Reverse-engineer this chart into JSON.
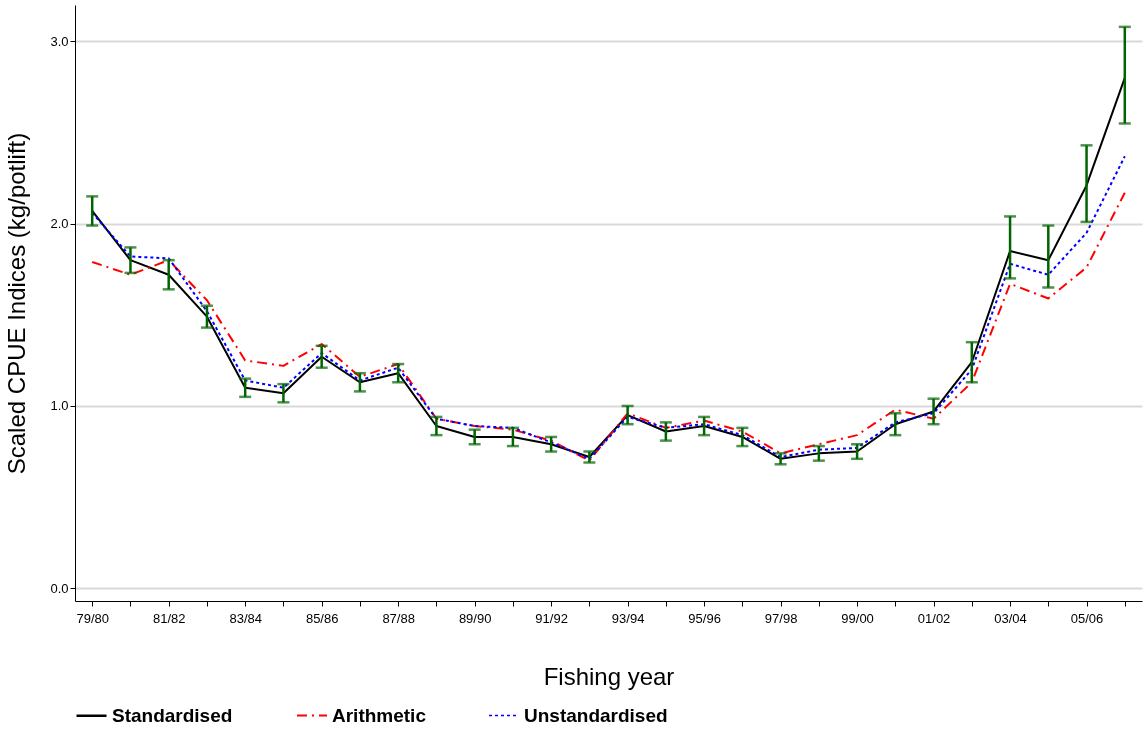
{
  "chart_data": {
    "type": "line",
    "xlabel": "Fishing year",
    "ylabel": "Scaled CPUE Indices (kg/potlift)",
    "categories": [
      "79/80",
      null,
      "81/82",
      null,
      "83/84",
      null,
      "85/86",
      null,
      "87/88",
      null,
      "89/90",
      null,
      "91/92",
      null,
      "93/94",
      null,
      "95/96",
      null,
      "97/98",
      null,
      "99/00",
      null,
      "01/02",
      null,
      "03/04",
      null,
      "05/06",
      null
    ],
    "series": [
      {
        "name": "Standardised",
        "color": "#000000",
        "line_style": "solid",
        "values": [
          2.07,
          1.8,
          1.72,
          1.49,
          1.1,
          1.07,
          1.27,
          1.13,
          1.18,
          0.89,
          0.83,
          0.83,
          0.79,
          0.72,
          0.95,
          0.86,
          0.89,
          0.83,
          0.71,
          0.74,
          0.75,
          0.9,
          0.97,
          1.24,
          1.85,
          1.8,
          2.21,
          2.8
        ],
        "errors": [
          0.08,
          0.07,
          0.08,
          0.06,
          0.05,
          0.05,
          0.06,
          0.05,
          0.05,
          0.05,
          0.04,
          0.05,
          0.04,
          0.03,
          0.05,
          0.05,
          0.05,
          0.05,
          0.03,
          0.04,
          0.04,
          0.06,
          0.07,
          0.11,
          [
            1.7,
            2.04
          ],
          [
            1.65,
            1.99
          ],
          [
            2.01,
            2.43
          ],
          [
            2.55,
            3.08
          ]
        ]
      },
      {
        "name": "Arithmetic",
        "color": "#ff0000",
        "line_style": "dashed",
        "values": [
          1.79,
          1.72,
          1.8,
          1.58,
          1.25,
          1.22,
          1.34,
          1.16,
          1.23,
          0.93,
          0.89,
          0.87,
          0.81,
          0.7,
          0.96,
          0.88,
          0.92,
          0.86,
          0.74,
          0.79,
          0.84,
          0.98,
          0.93,
          1.13,
          1.67,
          1.59,
          1.76,
          2.17
        ]
      },
      {
        "name": "Unstandardised",
        "color": "#0000ff",
        "line_style": "dotted",
        "values": [
          2.06,
          1.82,
          1.81,
          1.52,
          1.14,
          1.1,
          1.29,
          1.14,
          1.21,
          0.93,
          0.89,
          0.88,
          0.8,
          0.71,
          0.94,
          0.88,
          0.9,
          0.84,
          0.72,
          0.76,
          0.77,
          0.91,
          0.96,
          1.2,
          1.78,
          1.72,
          1.95,
          2.37
        ]
      }
    ],
    "ylim": [
      -0.07,
      3.2
    ],
    "yticks": [
      {
        "value": 0,
        "label": "0.0"
      },
      {
        "value": 1,
        "label": "1.0"
      },
      {
        "value": 2,
        "label": "2.0"
      },
      {
        "value": 3,
        "label": "3.0"
      }
    ],
    "grid": "y",
    "legend": "bottom",
    "marker": "none"
  }
}
